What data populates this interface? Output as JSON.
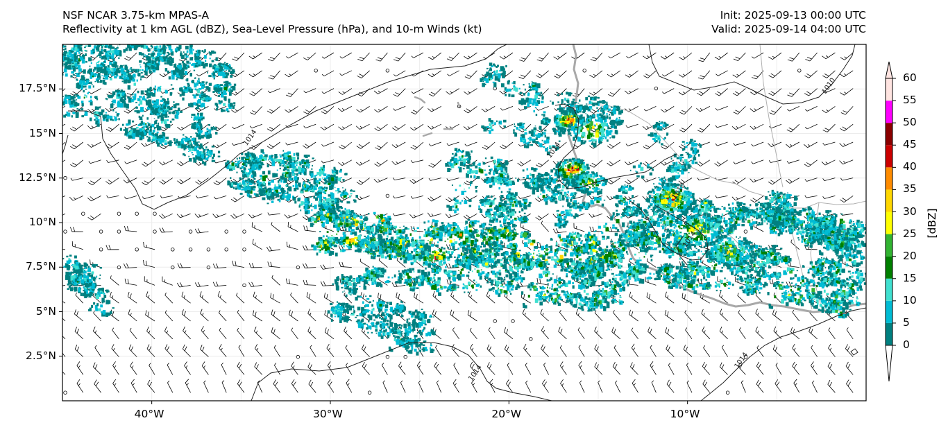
{
  "header": {
    "left_line1": "NSF NCAR 3.75-km MPAS-A",
    "left_line2": "Reflectivity at 1 km AGL (dBZ), Sea-Level Pressure (hPa), and 10-m Winds (kt)",
    "right_line1": "Init: 2025-09-13 00:00 UTC",
    "right_line2": "Valid: 2025-09-14 04:00 UTC"
  },
  "map": {
    "lon_range": [
      -45,
      0
    ],
    "lat_range": [
      0,
      20
    ],
    "lat_ticks": [
      {
        "value": 17.5,
        "label": "17.5°N"
      },
      {
        "value": 15,
        "label": "15°N"
      },
      {
        "value": 12.5,
        "label": "12.5°N"
      },
      {
        "value": 10,
        "label": "10°N"
      },
      {
        "value": 7.5,
        "label": "7.5°N"
      },
      {
        "value": 5,
        "label": "5°N"
      },
      {
        "value": 2.5,
        "label": "2.5°N"
      }
    ],
    "lon_ticks": [
      {
        "value": -40,
        "label": "40°W"
      },
      {
        "value": -30,
        "label": "30°W"
      },
      {
        "value": -20,
        "label": "20°W"
      },
      {
        "value": -10,
        "label": "10°W"
      }
    ],
    "isobar_labels": [
      {
        "lon": -34.4,
        "lat": 14.7,
        "text": "1014"
      },
      {
        "lon": -17.4,
        "lat": 14.0,
        "text": "1014"
      },
      {
        "lon": -9.8,
        "lat": 9.0,
        "text": "1014"
      },
      {
        "lon": -10.4,
        "lat": 11.7,
        "text": "1010"
      },
      {
        "lon": -2.0,
        "lat": 17.6,
        "text": "1010"
      },
      {
        "lon": -21.8,
        "lat": 1.5,
        "text": "1014"
      },
      {
        "lon": -6.9,
        "lat": 2.2,
        "text": "1014"
      }
    ]
  },
  "colorbar": {
    "label": "[dBZ]",
    "ticks": [
      "0",
      "5",
      "10",
      "15",
      "20",
      "25",
      "30",
      "35",
      "40",
      "45",
      "50",
      "55",
      "60"
    ],
    "colors": [
      "#008080",
      "#00bcd4",
      "#40e0d0",
      "#008000",
      "#32b432",
      "#ffff00",
      "#ffd700",
      "#ff8c00",
      "#cc0000",
      "#8b0000",
      "#ff00ff",
      "#ffe4e1"
    ]
  }
}
